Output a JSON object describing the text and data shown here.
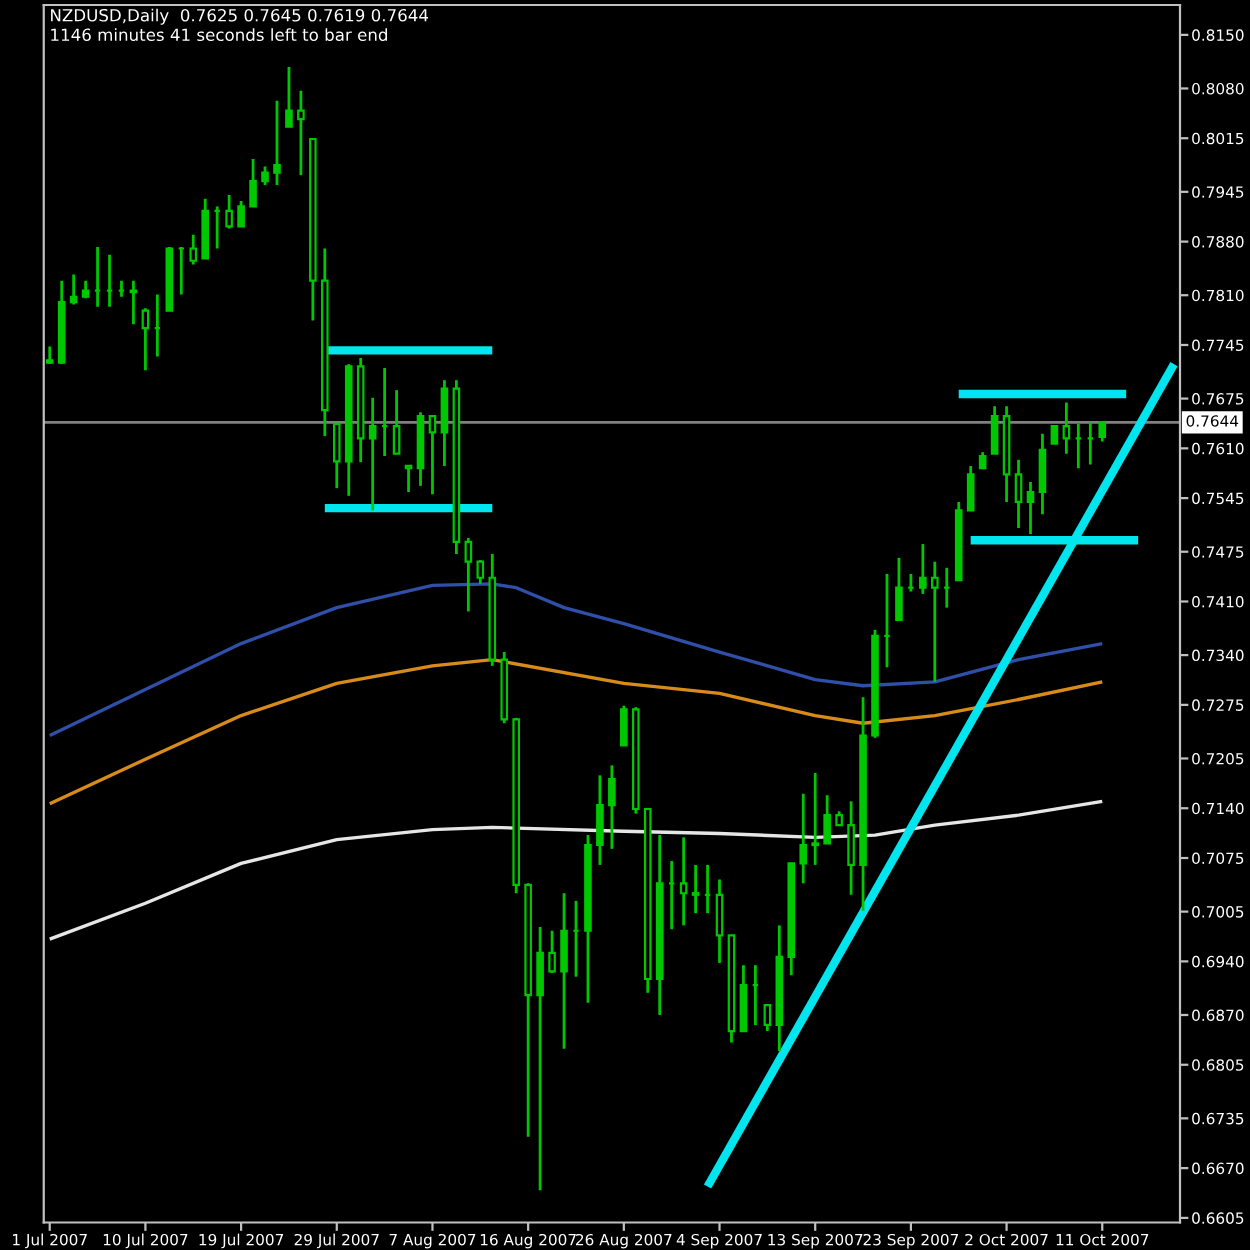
{
  "chart_data": {
    "type": "candlestick",
    "title": "NZDUSD,Daily  0.7625 0.7645 0.7619 0.7644",
    "annotations": [
      "1146 minutes 41 seconds left to bar end"
    ],
    "categories": [
      "1 Jul 2007",
      null,
      null,
      null,
      null,
      null,
      null,
      null,
      "10 Jul 2007",
      null,
      null,
      null,
      null,
      null,
      null,
      null,
      "19 Jul 2007",
      null,
      null,
      null,
      null,
      null,
      null,
      null,
      "29 Jul 2007",
      null,
      null,
      null,
      null,
      null,
      null,
      null,
      "7 Aug 2007",
      null,
      null,
      null,
      null,
      null,
      null,
      null,
      "16 Aug 2007",
      null,
      null,
      null,
      null,
      null,
      null,
      null,
      "26 Aug 2007",
      null,
      null,
      null,
      null,
      null,
      null,
      null,
      "4 Sep 2007",
      null,
      null,
      null,
      null,
      null,
      null,
      null,
      "13 Sep 2007",
      null,
      null,
      null,
      null,
      null,
      null,
      null,
      "23 Sep 2007",
      null,
      null,
      null,
      null,
      null,
      null,
      null,
      "2 Oct 2007",
      null,
      null,
      null,
      null,
      null,
      null,
      null,
      "11 Oct 2007",
      null,
      null,
      null,
      null,
      null,
      null
    ],
    "color": "#00c800",
    "ohlc": [
      [
        0.7722,
        0.7743,
        0.772,
        0.7725
      ],
      [
        0.7722,
        0.7829,
        0.772,
        0.7801
      ],
      [
        0.7801,
        0.7837,
        0.7798,
        0.7808
      ],
      [
        0.7808,
        0.7829,
        0.7806,
        0.7816
      ],
      [
        0.7816,
        0.7873,
        0.7795,
        0.7816
      ],
      [
        0.7816,
        0.7863,
        0.7795,
        0.7816
      ],
      [
        0.7816,
        0.7829,
        0.7808,
        0.7816
      ],
      [
        0.7816,
        0.7829,
        0.7772,
        0.7814
      ],
      [
        0.779,
        0.7793,
        0.7712,
        0.7767
      ],
      [
        0.7767,
        0.7811,
        0.773,
        0.7767
      ],
      [
        0.779,
        0.7873,
        0.779,
        0.7871
      ],
      [
        0.7871,
        0.7873,
        0.7811,
        0.7871
      ],
      [
        0.7871,
        0.7889,
        0.785,
        0.7855
      ],
      [
        0.7858,
        0.7936,
        0.7858,
        0.792
      ],
      [
        0.792,
        0.7926,
        0.7871,
        0.792
      ],
      [
        0.792,
        0.7941,
        0.7897,
        0.79
      ],
      [
        0.79,
        0.7933,
        0.79,
        0.7926
      ],
      [
        0.7926,
        0.7988,
        0.7926,
        0.7959
      ],
      [
        0.7959,
        0.7978,
        0.7954,
        0.797
      ],
      [
        0.797,
        0.8064,
        0.7954,
        0.798
      ],
      [
        0.803,
        0.8108,
        0.803,
        0.8051
      ],
      [
        0.8051,
        0.8077,
        0.7967,
        0.804
      ],
      [
        0.8014,
        0.8014,
        0.7777,
        0.7829
      ],
      [
        0.7829,
        0.7871,
        0.7626,
        0.766
      ],
      [
        0.7642,
        0.7642,
        0.7558,
        0.7593
      ],
      [
        0.7593,
        0.772,
        0.7548,
        0.7717
      ],
      [
        0.7717,
        0.7728,
        0.7592,
        0.7623
      ],
      [
        0.7623,
        0.7676,
        0.7529,
        0.7639
      ],
      [
        0.7639,
        0.7715,
        0.76,
        0.7639
      ],
      [
        0.7639,
        0.7686,
        0.7603,
        0.7603
      ],
      [
        0.7587,
        0.7587,
        0.7553,
        0.7584
      ],
      [
        0.7584,
        0.7657,
        0.7561,
        0.7652
      ],
      [
        0.7652,
        0.7652,
        0.755,
        0.7631
      ],
      [
        0.7631,
        0.7699,
        0.7587,
        0.7688
      ],
      [
        0.7688,
        0.7699,
        0.7472,
        0.7488
      ],
      [
        0.7488,
        0.7493,
        0.7397,
        0.7462
      ],
      [
        0.7462,
        0.7464,
        0.7433,
        0.7441
      ],
      [
        0.7441,
        0.7472,
        0.7326,
        0.7334
      ],
      [
        0.7334,
        0.7344,
        0.7251,
        0.7256
      ],
      [
        0.7256,
        0.7258,
        0.7029,
        0.704
      ],
      [
        0.704,
        0.7042,
        0.6711,
        0.6896
      ],
      [
        0.6896,
        0.6985,
        0.6641,
        0.6951
      ],
      [
        0.6951,
        0.698,
        0.6925,
        0.6927
      ],
      [
        0.6927,
        0.7029,
        0.6826,
        0.698
      ],
      [
        0.698,
        0.7019,
        0.692,
        0.698
      ],
      [
        0.698,
        0.7105,
        0.6886,
        0.7092
      ],
      [
        0.7092,
        0.7183,
        0.7066,
        0.7144
      ],
      [
        0.7144,
        0.7196,
        0.7087,
        0.7178
      ],
      [
        0.7222,
        0.7274,
        0.7222,
        0.7269
      ],
      [
        0.7269,
        0.7272,
        0.7133,
        0.7139
      ],
      [
        0.7139,
        0.7139,
        0.6899,
        0.6917
      ],
      [
        0.6917,
        0.7105,
        0.687,
        0.7042
      ],
      [
        0.7042,
        0.7071,
        0.6982,
        0.7042
      ],
      [
        0.7042,
        0.7102,
        0.6987,
        0.7029
      ],
      [
        0.7029,
        0.7066,
        0.7003,
        0.7027
      ],
      [
        0.7027,
        0.7066,
        0.7003,
        0.7027
      ],
      [
        0.7027,
        0.7047,
        0.6938,
        0.6974
      ],
      [
        0.6974,
        0.6974,
        0.6834,
        0.6849
      ],
      [
        0.6849,
        0.6935,
        0.6849,
        0.6909
      ],
      [
        0.6909,
        0.6935,
        0.6857,
        0.6909
      ],
      [
        0.6883,
        0.6883,
        0.6849,
        0.6857
      ],
      [
        0.6857,
        0.6987,
        0.6823,
        0.6946
      ],
      [
        0.6946,
        0.7068,
        0.6922,
        0.7068
      ],
      [
        0.7068,
        0.7159,
        0.7042,
        0.7092
      ],
      [
        0.7092,
        0.7186,
        0.7066,
        0.7094
      ],
      [
        0.7094,
        0.7157,
        0.7094,
        0.7131
      ],
      [
        0.7131,
        0.7136,
        0.7118,
        0.7118
      ],
      [
        0.7118,
        0.7149,
        0.7027,
        0.7066
      ],
      [
        0.7066,
        0.7285,
        0.7006,
        0.7235
      ],
      [
        0.7235,
        0.7373,
        0.7232,
        0.7365
      ],
      [
        0.7365,
        0.7446,
        0.7324,
        0.7365
      ],
      [
        0.7386,
        0.7467,
        0.7386,
        0.7428
      ],
      [
        0.7428,
        0.7446,
        0.7423,
        0.7428
      ],
      [
        0.7428,
        0.7485,
        0.742,
        0.7441
      ],
      [
        0.7441,
        0.7462,
        0.7305,
        0.7428
      ],
      [
        0.7428,
        0.7454,
        0.7402,
        0.7428
      ],
      [
        0.7438,
        0.754,
        0.7438,
        0.7529
      ],
      [
        0.7529,
        0.7587,
        0.7529,
        0.7576
      ],
      [
        0.7584,
        0.7605,
        0.7584,
        0.76
      ],
      [
        0.7603,
        0.7665,
        0.7603,
        0.7652
      ],
      [
        0.7652,
        0.7665,
        0.754,
        0.7576
      ],
      [
        0.7576,
        0.7595,
        0.7506,
        0.754
      ],
      [
        0.754,
        0.7566,
        0.7498,
        0.7553
      ],
      [
        0.7553,
        0.7629,
        0.7524,
        0.7608
      ],
      [
        0.7616,
        0.7639,
        0.7616,
        0.7639
      ],
      [
        0.7639,
        0.767,
        0.7603,
        0.7623
      ],
      [
        0.7623,
        0.7642,
        0.7584,
        0.7623
      ],
      [
        0.7623,
        0.7644,
        0.7589,
        0.7623
      ],
      [
        0.7625,
        0.7645,
        0.7619,
        0.7644
      ],
      null,
      null,
      null,
      null,
      null,
      null
    ],
    "series": [
      {
        "type": "line",
        "color": "#2f4fa8",
        "values": [
          0.7235,
          null,
          null,
          null,
          null,
          null,
          null,
          null,
          0.7295,
          null,
          null,
          null,
          null,
          null,
          null,
          null,
          0.7355,
          null,
          null,
          null,
          null,
          null,
          null,
          null,
          0.7402,
          null,
          null,
          null,
          null,
          null,
          null,
          null,
          0.7431,
          null,
          null,
          null,
          null,
          0.7433,
          null,
          0.7428,
          null,
          null,
          null,
          0.7402,
          null,
          null,
          null,
          null,
          0.7381,
          null,
          null,
          null,
          null,
          null,
          null,
          null,
          0.7344,
          null,
          null,
          null,
          null,
          null,
          null,
          null,
          0.7308,
          null,
          null,
          null,
          0.73,
          null,
          null,
          null,
          null,
          null,
          0.7305,
          null,
          null,
          null,
          null,
          null,
          null,
          0.7334,
          null,
          null,
          null,
          null,
          null,
          null,
          0.7355,
          null,
          null,
          null,
          null,
          null,
          null
        ]
      },
      {
        "type": "line",
        "color": "#d98b1a",
        "values": [
          0.7146,
          null,
          null,
          null,
          null,
          null,
          null,
          null,
          0.7204,
          null,
          null,
          null,
          null,
          null,
          null,
          null,
          0.7261,
          null,
          null,
          null,
          null,
          null,
          null,
          null,
          0.7303,
          null,
          null,
          null,
          null,
          null,
          null,
          null,
          0.7326,
          null,
          null,
          null,
          null,
          0.7334,
          null,
          null,
          null,
          null,
          null,
          null,
          null,
          null,
          null,
          null,
          0.7303,
          null,
          null,
          null,
          null,
          null,
          null,
          null,
          0.729,
          null,
          null,
          null,
          null,
          null,
          null,
          null,
          0.7261,
          null,
          null,
          null,
          0.7251,
          null,
          null,
          null,
          null,
          null,
          0.7261,
          null,
          null,
          null,
          null,
          null,
          null,
          0.7282,
          null,
          null,
          null,
          null,
          null,
          null,
          0.7305,
          null,
          null,
          null,
          null,
          null,
          null
        ]
      },
      {
        "type": "line",
        "color": "#e6e6e6",
        "values": [
          0.6969,
          null,
          null,
          null,
          null,
          null,
          null,
          null,
          0.7016,
          null,
          null,
          null,
          null,
          null,
          null,
          null,
          0.7068,
          null,
          null,
          null,
          null,
          null,
          null,
          null,
          0.7099,
          null,
          null,
          null,
          null,
          null,
          null,
          null,
          0.7112,
          null,
          null,
          null,
          null,
          0.7115,
          null,
          null,
          null,
          null,
          null,
          null,
          null,
          null,
          null,
          null,
          0.711,
          null,
          null,
          null,
          null,
          null,
          null,
          null,
          0.7107,
          null,
          null,
          null,
          null,
          null,
          null,
          null,
          0.7102,
          null,
          null,
          null,
          null,
          0.7105,
          null,
          null,
          null,
          null,
          0.7118,
          null,
          null,
          null,
          null,
          null,
          null,
          0.7131,
          null,
          null,
          null,
          null,
          null,
          null,
          0.7149,
          null,
          null,
          null,
          null,
          null,
          null
        ]
      },
      {
        "type": "line",
        "color": "#00e5ee",
        "values": [
          null,
          null,
          null,
          null,
          null,
          null,
          null,
          null,
          null,
          null,
          null,
          null,
          null,
          null,
          null,
          null,
          null,
          null,
          null,
          null,
          null,
          null,
          null,
          null,
          null,
          null,
          null,
          null,
          null,
          null,
          null,
          null,
          null,
          null,
          null,
          null,
          null,
          null,
          null,
          null,
          null,
          null,
          null,
          null,
          null,
          null,
          null,
          null,
          null,
          null,
          null,
          null,
          null,
          null,
          null,
          0.6646,
          null,
          null,
          null,
          null,
          null,
          null,
          null,
          null,
          null,
          null,
          null,
          null,
          null,
          null,
          null,
          null,
          null,
          null,
          null,
          null,
          null,
          null,
          null,
          null,
          null,
          null,
          null,
          null,
          null,
          null,
          null,
          null,
          null,
          null,
          null,
          null,
          null,
          null,
          0.772
        ]
      },
      {
        "type": "line",
        "color": "#00e5ee",
        "values": [
          null,
          null,
          null,
          null,
          null,
          null,
          null,
          null,
          null,
          null,
          null,
          null,
          null,
          null,
          null,
          null,
          null,
          null,
          null,
          null,
          null,
          null,
          null,
          0.7738,
          null,
          null,
          null,
          null,
          null,
          null,
          null,
          null,
          null,
          null,
          null,
          null,
          null,
          0.7738,
          null,
          null,
          null,
          null,
          null,
          null,
          null,
          null,
          null,
          null,
          null,
          null,
          null,
          null,
          null,
          null,
          null,
          null,
          null,
          null,
          null,
          null,
          null,
          null,
          null,
          null,
          null,
          null,
          null,
          null,
          null,
          null,
          null,
          null,
          null,
          null,
          null,
          null,
          null,
          null,
          null,
          null,
          null,
          null,
          null,
          null,
          null,
          null,
          null,
          null,
          null,
          null,
          null,
          null,
          null,
          null,
          null
        ]
      },
      {
        "type": "line",
        "color": "#00e5ee",
        "values": [
          null,
          null,
          null,
          null,
          null,
          null,
          null,
          null,
          null,
          null,
          null,
          null,
          null,
          null,
          null,
          null,
          null,
          null,
          null,
          null,
          null,
          null,
          null,
          0.7532,
          null,
          null,
          null,
          null,
          null,
          null,
          null,
          null,
          null,
          null,
          null,
          null,
          null,
          0.7532,
          null,
          null,
          null,
          null,
          null,
          null,
          null,
          null,
          null,
          null,
          null,
          null,
          null,
          null,
          null,
          null,
          null,
          null,
          null,
          null,
          null,
          null,
          null,
          null,
          null,
          null,
          null,
          null,
          null,
          null,
          null,
          null,
          null,
          null,
          null,
          null,
          null,
          null,
          null,
          null,
          null,
          null,
          null,
          null,
          null,
          null,
          null,
          null,
          null,
          null,
          null,
          null,
          null,
          null,
          null,
          null,
          null
        ]
      },
      {
        "type": "line",
        "color": "#00e5ee",
        "values": [
          null,
          null,
          null,
          null,
          null,
          null,
          null,
          null,
          null,
          null,
          null,
          null,
          null,
          null,
          null,
          null,
          null,
          null,
          null,
          null,
          null,
          null,
          null,
          null,
          null,
          null,
          null,
          null,
          null,
          null,
          null,
          null,
          null,
          null,
          null,
          null,
          null,
          null,
          null,
          null,
          null,
          null,
          null,
          null,
          null,
          null,
          null,
          null,
          null,
          null,
          null,
          null,
          null,
          null,
          null,
          null,
          null,
          null,
          null,
          null,
          null,
          null,
          null,
          null,
          null,
          null,
          null,
          null,
          null,
          null,
          null,
          null,
          null,
          null,
          null,
          null,
          0.7681,
          null,
          null,
          null,
          null,
          null,
          null,
          null,
          null,
          null,
          null,
          null,
          null,
          null,
          0.7681,
          null,
          null,
          null,
          null
        ]
      },
      {
        "type": "line",
        "color": "#00e5ee",
        "values": [
          null,
          null,
          null,
          null,
          null,
          null,
          null,
          null,
          null,
          null,
          null,
          null,
          null,
          null,
          null,
          null,
          null,
          null,
          null,
          null,
          null,
          null,
          null,
          null,
          null,
          null,
          null,
          null,
          null,
          null,
          null,
          null,
          null,
          null,
          null,
          null,
          null,
          null,
          null,
          null,
          null,
          null,
          null,
          null,
          null,
          null,
          null,
          null,
          null,
          null,
          null,
          null,
          null,
          null,
          null,
          null,
          null,
          null,
          null,
          null,
          null,
          null,
          null,
          null,
          null,
          null,
          null,
          null,
          null,
          null,
          null,
          null,
          null,
          null,
          null,
          null,
          null,
          0.749,
          null,
          null,
          null,
          null,
          null,
          null,
          null,
          null,
          null,
          null,
          null,
          null,
          null,
          0.749,
          null,
          null,
          null
        ]
      }
    ],
    "ref_lines": [
      {
        "axis": "y",
        "value": 0.7644,
        "label": "0.7644",
        "color": "#808080"
      }
    ],
    "ylim": [
      0.6599,
      0.8189
    ],
    "yticks": [
      {
        "value": 0.815,
        "label": "0.8150"
      },
      {
        "value": 0.808,
        "label": "0.8080"
      },
      {
        "value": 0.8015,
        "label": "0.8015"
      },
      {
        "value": 0.7945,
        "label": "0.7945"
      },
      {
        "value": 0.788,
        "label": "0.7880"
      },
      {
        "value": 0.781,
        "label": "0.7810"
      },
      {
        "value": 0.7745,
        "label": "0.7745"
      },
      {
        "value": 0.7675,
        "label": "0.7675"
      },
      {
        "value": 0.761,
        "label": "0.7610"
      },
      {
        "value": 0.7545,
        "label": "0.7545"
      },
      {
        "value": 0.7475,
        "label": "0.7475"
      },
      {
        "value": 0.741,
        "label": "0.7410"
      },
      {
        "value": 0.734,
        "label": "0.7340"
      },
      {
        "value": 0.7275,
        "label": "0.7275"
      },
      {
        "value": 0.7205,
        "label": "0.7205"
      },
      {
        "value": 0.714,
        "label": "0.7140"
      },
      {
        "value": 0.7075,
        "label": "0.7075"
      },
      {
        "value": 0.7005,
        "label": "0.7005"
      },
      {
        "value": 0.694,
        "label": "0.6940"
      },
      {
        "value": 0.687,
        "label": "0.6870"
      },
      {
        "value": 0.6805,
        "label": "0.6805"
      },
      {
        "value": 0.6735,
        "label": "0.6735"
      },
      {
        "value": 0.667,
        "label": "0.6670"
      },
      {
        "value": 0.6605,
        "label": "0.6605"
      }
    ],
    "grid": false,
    "legend": false
  }
}
